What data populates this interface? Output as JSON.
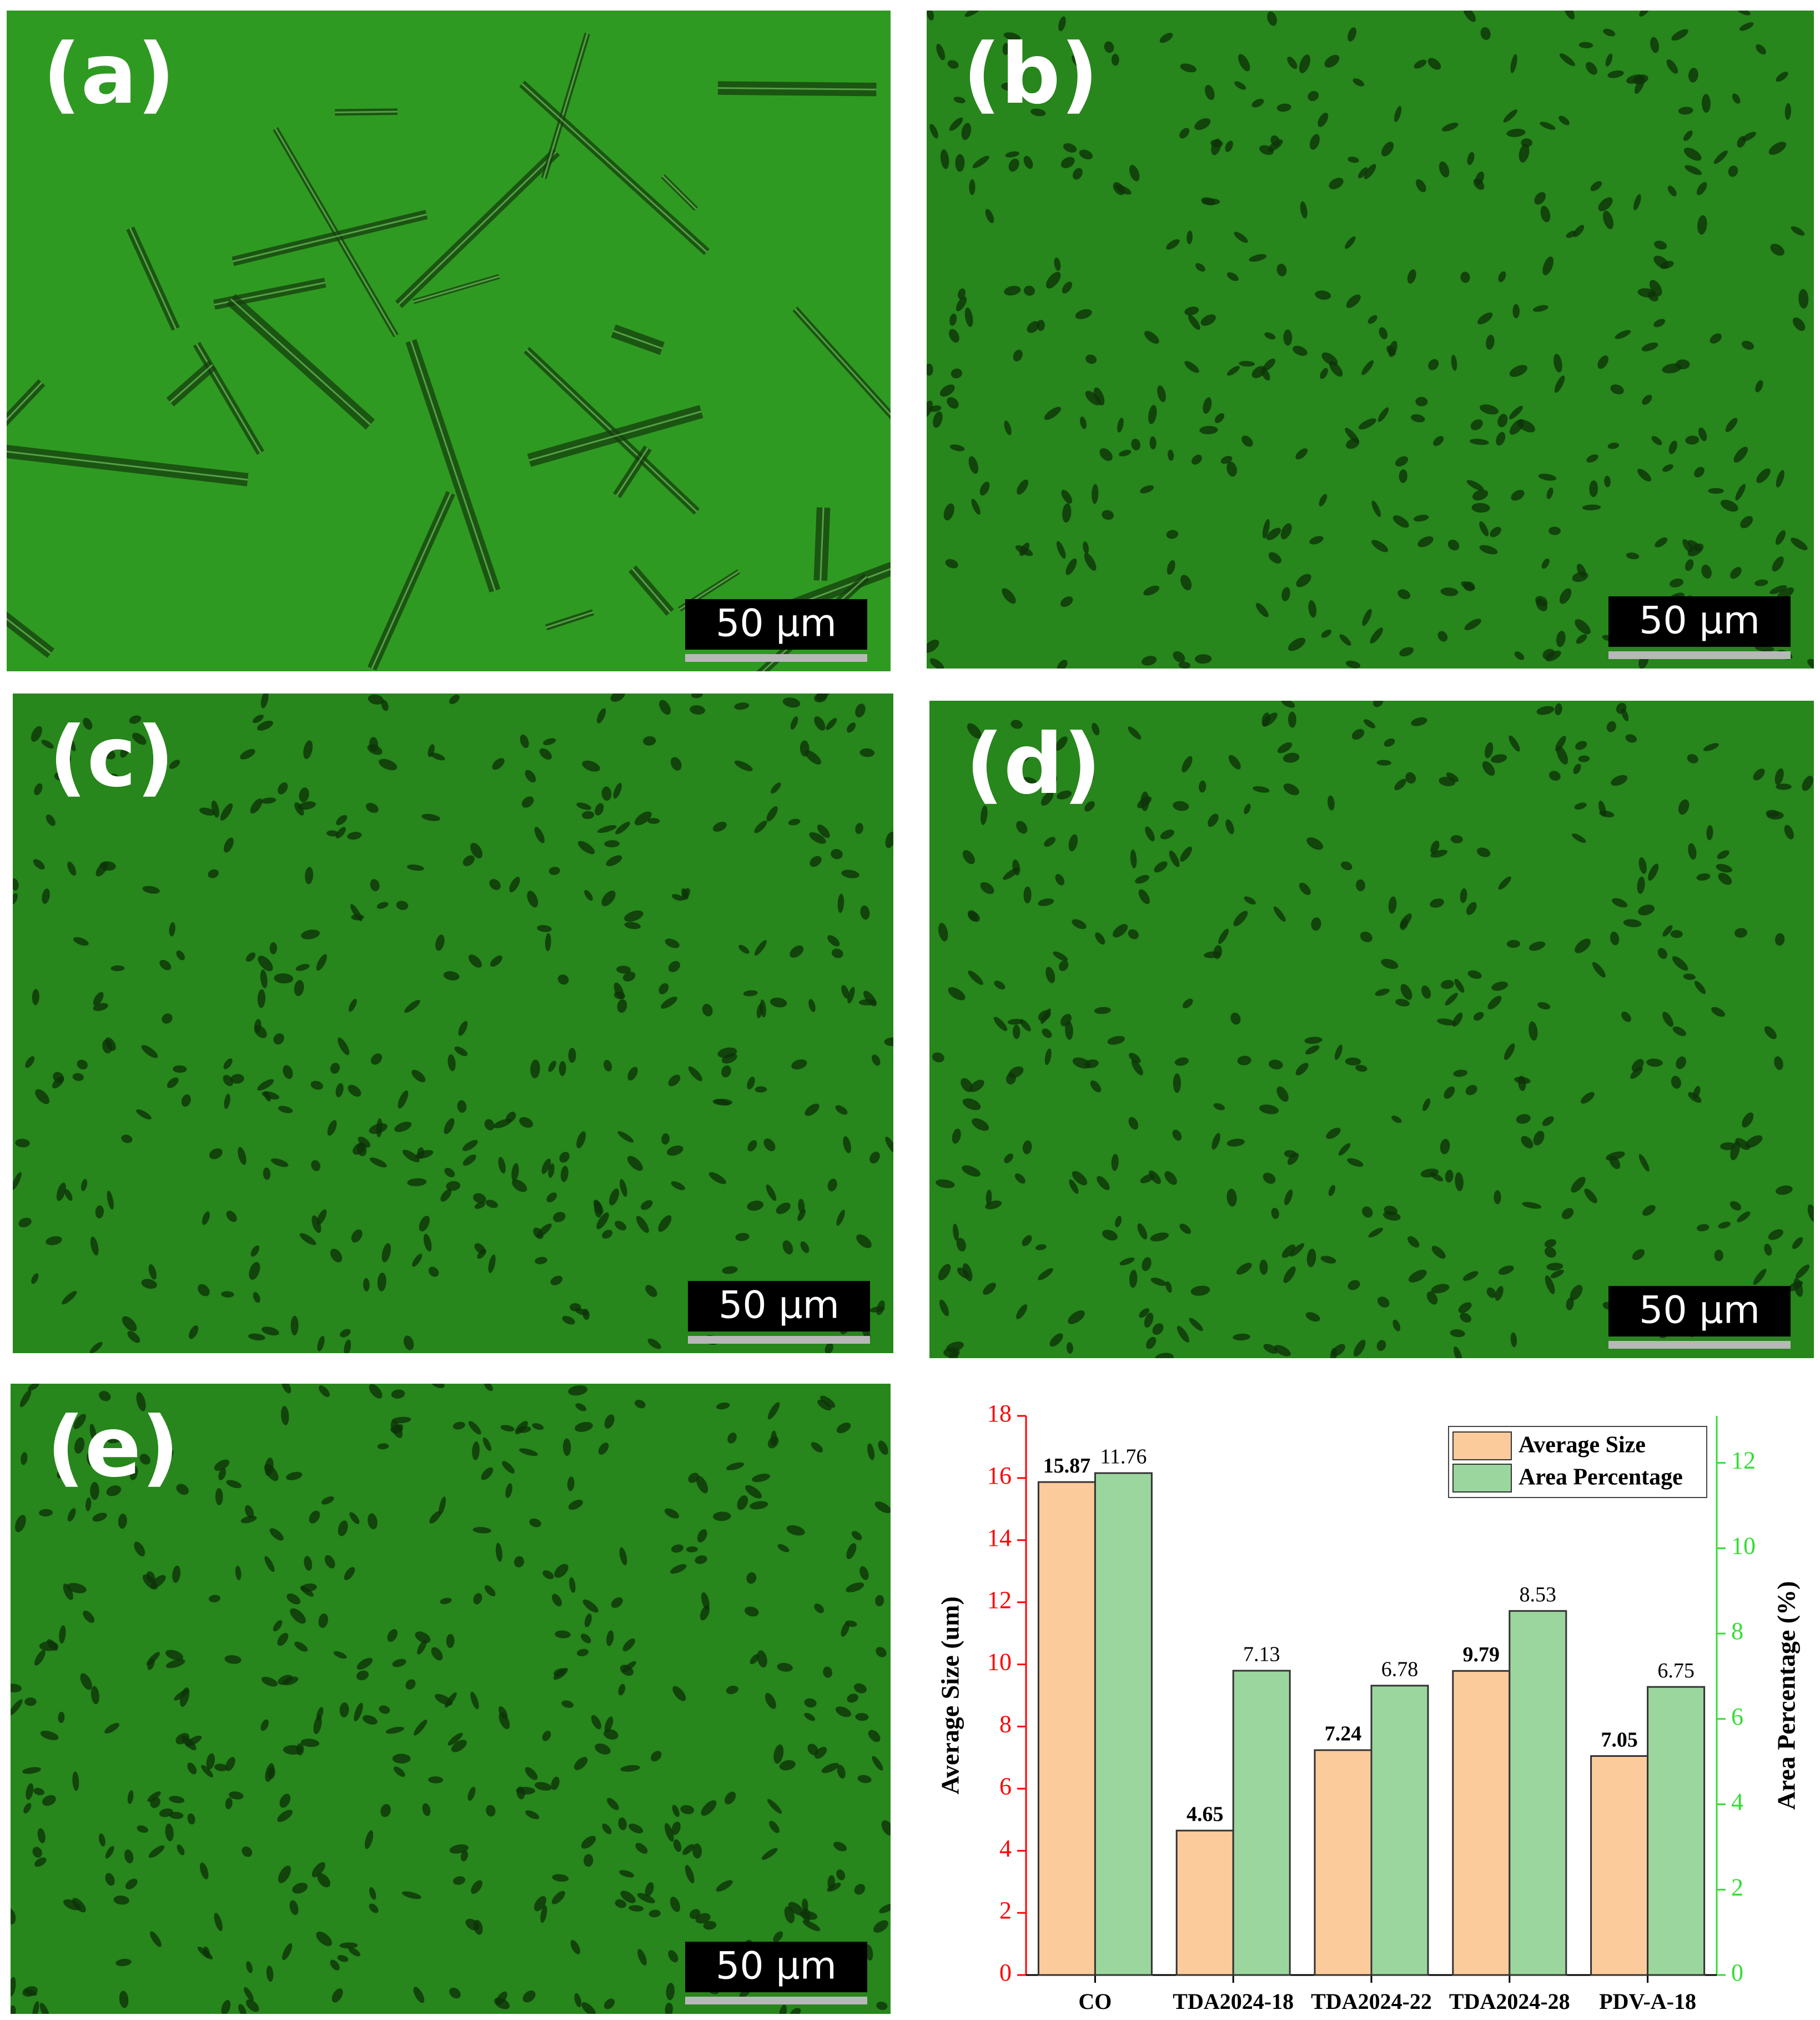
{
  "panels": [
    {
      "label": "(a)",
      "scale_bar": "50 μm"
    },
    {
      "label": "(b)",
      "scale_bar": "50 μm"
    },
    {
      "label": "(c)",
      "scale_bar": "50 μm"
    },
    {
      "label": "(d)",
      "scale_bar": "50 μm"
    },
    {
      "label": "(e)",
      "scale_bar": "50 μm"
    }
  ],
  "chart_data": {
    "type": "bar",
    "categories": [
      "CO",
      "TDA2024-18",
      "TDA2024-22",
      "TDA2024-28",
      "PDV-A-18"
    ],
    "series": [
      {
        "name": "Average Size",
        "color": "#fbcb9c",
        "values": [
          15.87,
          4.65,
          7.24,
          9.79,
          7.05
        ]
      },
      {
        "name": "Area Percentage",
        "color": "#9bd69e",
        "axis": "y2",
        "values": [
          11.76,
          7.13,
          6.78,
          8.53,
          6.75
        ]
      }
    ],
    "y_label": "Average Size (um)",
    "y2_label": "Area Percentage (%)",
    "ylim": [
      0,
      18
    ],
    "yticks": [
      0,
      2,
      4,
      6,
      8,
      10,
      12,
      14,
      16,
      18
    ],
    "y2lim": [
      0,
      13.1
    ],
    "y2ticks": [
      0,
      2,
      4,
      6,
      8,
      10,
      12
    ],
    "y_axis_color": "#ff0000",
    "y2_axis_color": "#33dd33",
    "legend": "top-right"
  }
}
